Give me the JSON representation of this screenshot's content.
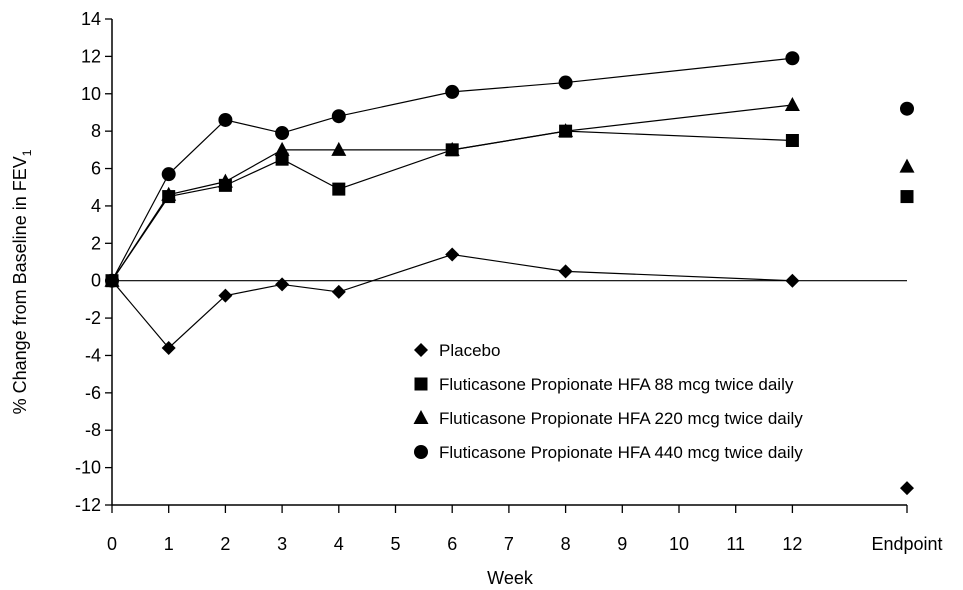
{
  "chart_data": {
    "type": "line",
    "title": "",
    "xlabel": "Week",
    "ylabel": "% Change from Baseline in FEV",
    "ylabel_subscript": "1",
    "ylim": [
      -12,
      14
    ],
    "yticks": [
      14,
      12,
      10,
      8,
      6,
      4,
      2,
      0,
      -2,
      -4,
      -6,
      -8,
      -10,
      -12
    ],
    "xticks": [
      "0",
      "1",
      "2",
      "3",
      "4",
      "5",
      "6",
      "7",
      "8",
      "9",
      "10",
      "11",
      "12",
      "Endpoint"
    ],
    "grid": false,
    "zero_line": true,
    "legend_position": "lower-center",
    "series": [
      {
        "name": "Placebo",
        "marker": "diamond",
        "x": [
          0,
          1,
          2,
          3,
          4,
          6,
          8,
          12
        ],
        "y": [
          0,
          -3.6,
          -0.8,
          -0.2,
          -0.6,
          1.4,
          0.5,
          0
        ],
        "endpoint": -11.1
      },
      {
        "name": "Fluticasone Propionate HFA 88 mcg twice daily",
        "marker": "square",
        "x": [
          0,
          1,
          2,
          3,
          4,
          6,
          8,
          12
        ],
        "y": [
          0,
          4.5,
          5.1,
          6.5,
          4.9,
          7.0,
          8.0,
          7.5
        ],
        "endpoint": 4.5
      },
      {
        "name": "Fluticasone Propionate HFA 220 mcg twice daily",
        "marker": "triangle",
        "x": [
          0,
          1,
          2,
          3,
          4,
          6,
          8,
          12
        ],
        "y": [
          0,
          4.6,
          5.3,
          7.0,
          7.0,
          7.0,
          8.0,
          9.4
        ],
        "endpoint": 6.1
      },
      {
        "name": "Fluticasone Propionate HFA 440 mcg twice daily",
        "marker": "circle",
        "x": [
          0,
          1,
          2,
          3,
          4,
          6,
          8,
          12
        ],
        "y": [
          0,
          5.7,
          8.6,
          7.9,
          8.8,
          10.1,
          10.6,
          11.9
        ],
        "endpoint": 9.2
      }
    ]
  }
}
